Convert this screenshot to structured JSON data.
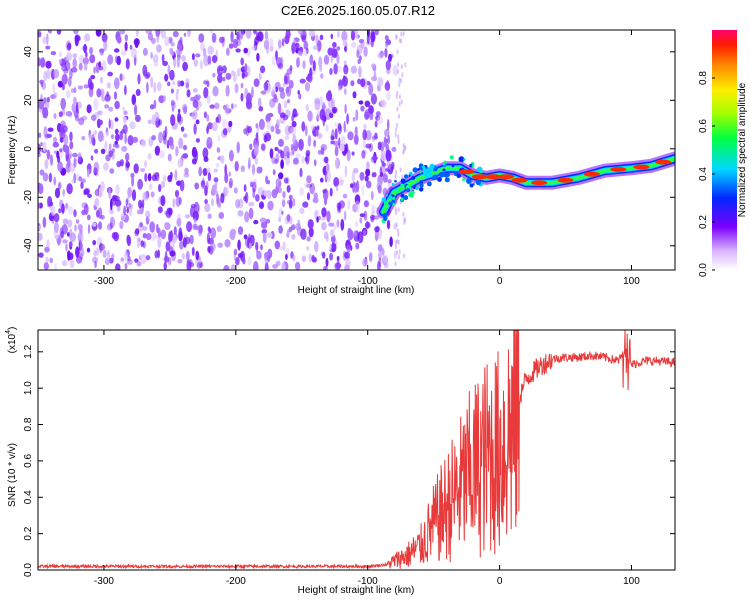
{
  "title": "C2E6.2025.160.05.07.R12",
  "chart_data": [
    {
      "type": "heatmap",
      "xlabel": "Height of straight line (km)",
      "ylabel": "Frequency (Hz)",
      "xlim": [
        -350,
        133
      ],
      "ylim": [
        -50,
        49
      ],
      "xticks": [
        "-300",
        "-200",
        "-100",
        "0",
        "100"
      ],
      "yticks": [
        "-40",
        "-20",
        "0",
        "20",
        "40"
      ],
      "colorbar": {
        "label": "Normalized spectral amplitude",
        "range": [
          0,
          1
        ],
        "ticks": [
          "0.0",
          "0.2",
          "0.4",
          "0.6",
          "0.8"
        ]
      },
      "noise_region_x": [
        -350,
        -85
      ],
      "signal_track": [
        {
          "x": -88,
          "y": -26
        },
        {
          "x": -80,
          "y": -18
        },
        {
          "x": -70,
          "y": -15
        },
        {
          "x": -60,
          "y": -12
        },
        {
          "x": -50,
          "y": -10
        },
        {
          "x": -40,
          "y": -8
        },
        {
          "x": -30,
          "y": -8
        },
        {
          "x": -20,
          "y": -11
        },
        {
          "x": -10,
          "y": -12
        },
        {
          "x": 0,
          "y": -11
        },
        {
          "x": 10,
          "y": -12
        },
        {
          "x": 20,
          "y": -14
        },
        {
          "x": 40,
          "y": -14
        },
        {
          "x": 60,
          "y": -12
        },
        {
          "x": 80,
          "y": -9
        },
        {
          "x": 100,
          "y": -8
        },
        {
          "x": 115,
          "y": -7
        },
        {
          "x": 133,
          "y": -4
        }
      ]
    },
    {
      "type": "line",
      "xlabel": "Height of straight line (km)",
      "ylabel": "SNR (10 * v/v)",
      "yscale_label": "(x10",
      "yscale_exp": "4",
      "yscale_close": ")",
      "xlim": [
        -350,
        133
      ],
      "ylim": [
        0,
        1.32
      ],
      "xticks": [
        "-300",
        "-200",
        "-100",
        "0",
        "100"
      ],
      "yticks": [
        "0.0",
        "0.2",
        "0.4",
        "0.6",
        "0.8",
        "1.0",
        "1.2"
      ],
      "color": "#e83a3a",
      "series": [
        {
          "x": [
            -350,
            -200,
            -100,
            -85,
            -80,
            -70,
            -60,
            -50,
            -40,
            -30,
            -20,
            -10,
            0,
            10,
            15,
            20,
            30,
            40,
            50,
            60,
            70,
            80,
            90,
            95,
            100,
            110,
            120,
            133
          ],
          "y": [
            0.02,
            0.02,
            0.02,
            0.03,
            0.05,
            0.08,
            0.13,
            0.25,
            0.35,
            0.45,
            0.55,
            0.62,
            0.65,
            0.8,
            0.95,
            1.05,
            1.12,
            1.16,
            1.17,
            1.17,
            1.18,
            1.17,
            1.15,
            1.2,
            1.13,
            1.15,
            1.15,
            1.14
          ]
        }
      ]
    }
  ]
}
